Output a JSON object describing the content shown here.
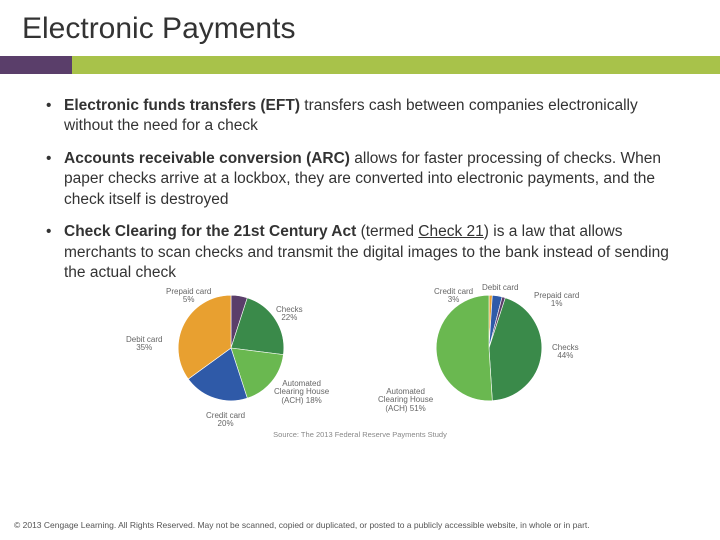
{
  "title": "Electronic Payments",
  "bar_colors": {
    "seg1": "#5a3e6a",
    "seg2": "#a8c24a"
  },
  "bullets": [
    {
      "bold": "Electronic funds transfers (EFT)",
      "rest": " transfers cash between companies electronically without the need for a check"
    },
    {
      "bold": "Accounts receivable conversion (ARC)",
      "rest": " allows for faster processing of checks. When paper checks arrive at a lockbox, they are converted into electronic payments, and the check itself is destroyed"
    },
    {
      "bold": "Check Clearing for the 21st Century Act",
      "mid": " (termed ",
      "under": "Check 21",
      "rest2": ") is a law that allows merchants to scan checks and transmit the digital images to the bank instead of sending the actual check"
    }
  ],
  "charts": [
    {
      "type": "pie",
      "labels": {
        "prepaid": "Prepaid card\n5%",
        "checks": "Checks\n22%",
        "ach": "Automated\nClearing House\n(ACH) 18%",
        "credit": "Credit card\n20%",
        "debit": "Debit card\n35%"
      },
      "slices": [
        {
          "name": "prepaid",
          "value": 5,
          "color": "#5a3e6a"
        },
        {
          "name": "checks",
          "value": 22,
          "color": "#3a8a4a"
        },
        {
          "name": "ach",
          "value": 18,
          "color": "#6ab850"
        },
        {
          "name": "credit",
          "value": 20,
          "color": "#2f5aa8"
        },
        {
          "name": "debit",
          "value": 35,
          "color": "#e8a030"
        }
      ],
      "radius": 44
    },
    {
      "type": "pie",
      "labels": {
        "credit": "Credit card\n3%",
        "debit": "Debit card",
        "prepaid": "Prepaid card\n1%",
        "checks": "Checks\n44%",
        "ach": "Automated\nClearing House\n(ACH) 51%"
      },
      "slices": [
        {
          "name": "debit",
          "value": 1,
          "color": "#e8a030"
        },
        {
          "name": "credit",
          "value": 3,
          "color": "#2f5aa8"
        },
        {
          "name": "prepaid",
          "value": 1,
          "color": "#5a3e6a"
        },
        {
          "name": "checks",
          "value": 44,
          "color": "#3a8a4a"
        },
        {
          "name": "ach",
          "value": 51,
          "color": "#6ab850"
        }
      ],
      "radius": 44
    }
  ],
  "source": "Source: The 2013 Federal Reserve Payments Study",
  "footer": "© 2013 Cengage Learning. All Rights Reserved. May not be scanned, copied or duplicated, or posted to a publicly accessible website, in whole or in part.",
  "label_positions": [
    {
      "prepaid": {
        "l": 40,
        "t": 0
      },
      "checks": {
        "l": 150,
        "t": 18
      },
      "ach": {
        "l": 148,
        "t": 92
      },
      "credit": {
        "l": 80,
        "t": 124
      },
      "debit": {
        "l": 0,
        "t": 48
      }
    },
    {
      "credit": {
        "l": 50,
        "t": 0
      },
      "debit": {
        "l": 98,
        "t": -4
      },
      "prepaid": {
        "l": 150,
        "t": 4
      },
      "checks": {
        "l": 168,
        "t": 56
      },
      "ach": {
        "l": -6,
        "t": 100
      }
    }
  ]
}
